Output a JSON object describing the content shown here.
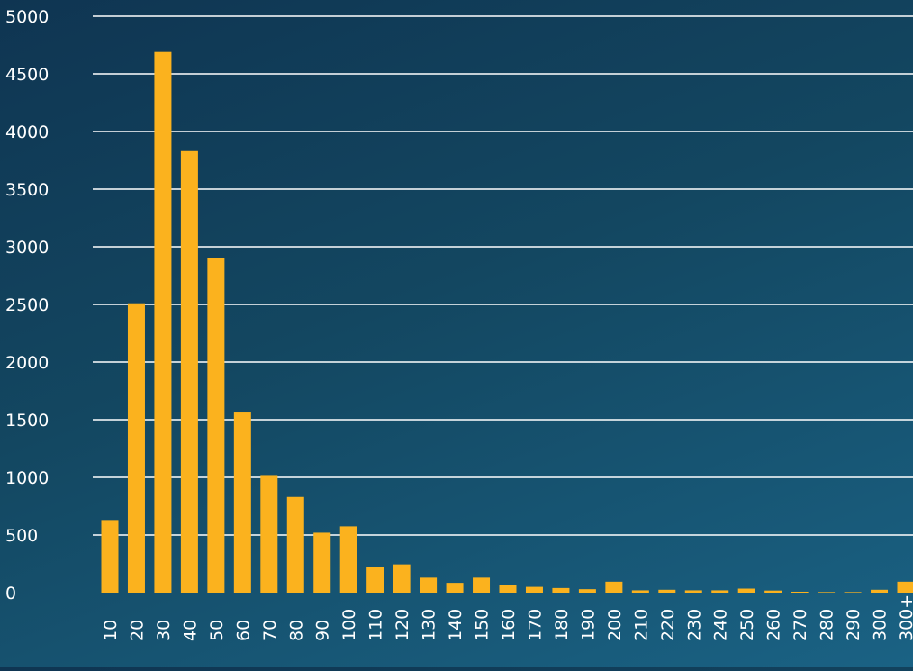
{
  "chart_data": {
    "type": "bar",
    "title": "",
    "xlabel": "",
    "ylabel": "",
    "ylim": [
      0,
      5000
    ],
    "yticks": [
      0,
      500,
      1000,
      1500,
      2000,
      2500,
      3000,
      3500,
      4000,
      4500,
      5000
    ],
    "grid": true,
    "categories": [
      "10",
      "20",
      "30",
      "40",
      "50",
      "60",
      "70",
      "80",
      "90",
      "100",
      "110",
      "120",
      "130",
      "140",
      "150",
      "160",
      "170",
      "180",
      "190",
      "200",
      "210",
      "220",
      "230",
      "240",
      "250",
      "260",
      "270",
      "280",
      "290",
      "300",
      "300+"
    ],
    "series": [
      {
        "values": [
          630,
          2510,
          4690,
          3830,
          2900,
          1570,
          1020,
          830,
          520,
          575,
          225,
          245,
          130,
          85,
          130,
          70,
          50,
          40,
          30,
          95,
          20,
          25,
          20,
          20,
          35,
          18,
          8,
          5,
          5,
          25,
          95
        ]
      }
    ],
    "colors": {
      "bar": "#fbb21e",
      "grid": "#ffffff",
      "tick_text": "#ffffff"
    }
  }
}
